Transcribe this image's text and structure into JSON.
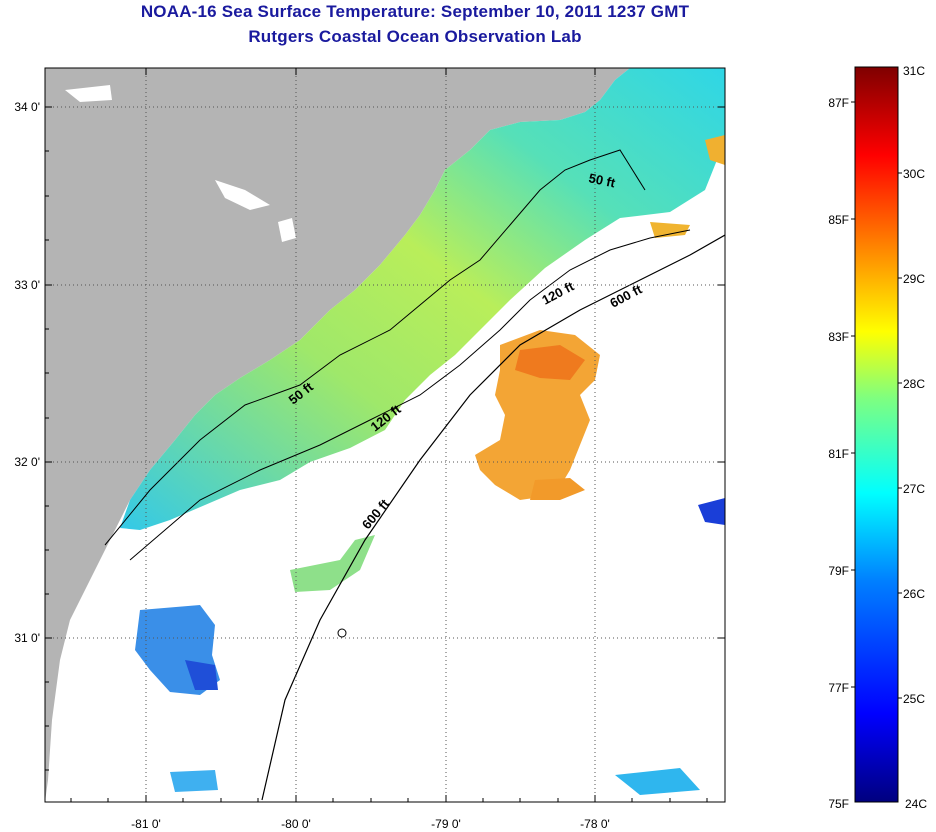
{
  "title": "NOAA-16 Sea Surface Temperature:  September 10, 2011 1237 GMT",
  "subtitle": "Rutgers Coastal Ocean Observation Lab",
  "lat_ticks": [
    "34 0'",
    "33 0'",
    "32 0'",
    "31 0'"
  ],
  "lon_ticks": [
    "-81 0'",
    "-80 0'",
    "-79 0'",
    "-78 0'"
  ],
  "contour_labels": [
    "50 ft",
    "120 ft",
    "600 ft",
    "50 ft",
    "120 ft",
    "600 ft"
  ],
  "colorbar": {
    "celsius": [
      "31C",
      "30C",
      "29C",
      "28C",
      "27C",
      "26C",
      "25C",
      "24C"
    ],
    "fahrenheit": [
      "87F",
      "85F",
      "83F",
      "81F",
      "79F",
      "77F",
      "75F"
    ]
  },
  "colors": {
    "land": "#b4b4b4",
    "cloud": "#ffffff",
    "title": "#1a1a9e"
  }
}
